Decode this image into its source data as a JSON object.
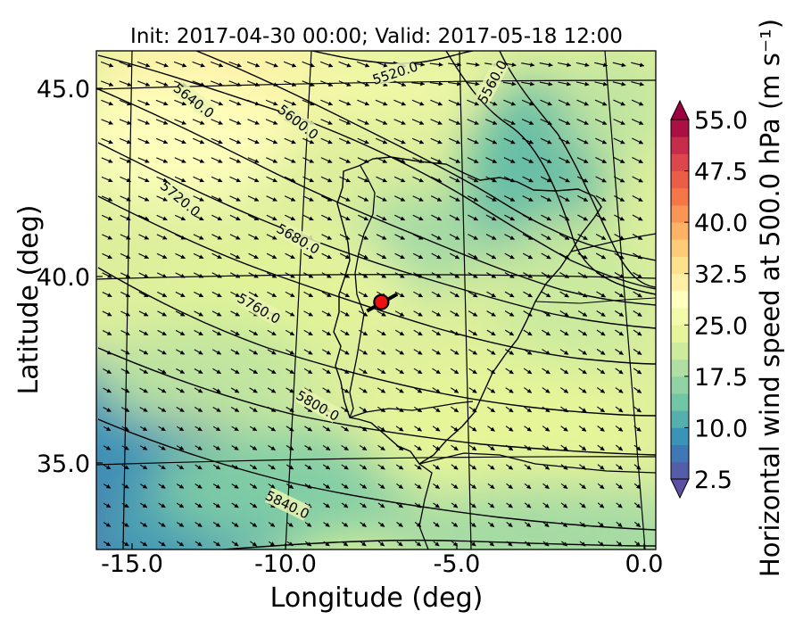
{
  "chart_data": {
    "type": "contourf-map",
    "title": "Init: 2017-04-30 00:00; Valid: 2017-05-18 12:00",
    "xlabel": "Longitude (deg)",
    "ylabel": "Latitude (deg)",
    "xlim": [
      -15.9,
      0.2
    ],
    "ylim": [
      32.7,
      46.0
    ],
    "x_ticks": [
      {
        "value": -15.0,
        "label": "-15.0"
      },
      {
        "value": -10.0,
        "label": "-10.0"
      },
      {
        "value": -5.0,
        "label": "-5.0"
      },
      {
        "value": 0.0,
        "label": "0.0"
      }
    ],
    "y_ticks": [
      {
        "value": 35.0,
        "label": "35.0"
      },
      {
        "value": 40.0,
        "label": "40.0"
      },
      {
        "value": 45.0,
        "label": "45.0"
      }
    ],
    "colorbar": {
      "label": "Horizontal wind speed at 500.0 hPa (m s⁻¹)",
      "min": 2.5,
      "max": 55.0,
      "step": 2.5,
      "ticks": [
        "2.5",
        "10.0",
        "17.5",
        "25.0",
        "32.5",
        "40.0",
        "47.5",
        "55.0"
      ],
      "tick_values": [
        2.5,
        10.0,
        17.5,
        25.0,
        32.5,
        40.0,
        47.5,
        55.0
      ],
      "colormap": "Spectral_r",
      "extend": "both"
    },
    "geopotential_contours": [
      {
        "label": "5520.0",
        "value": 5520.0
      },
      {
        "label": "5560.0",
        "value": 5560.0
      },
      {
        "label": "5600.0",
        "value": 5600.0
      },
      {
        "label": "5640.0",
        "value": 5640.0
      },
      {
        "label": "5680.0",
        "value": 5680.0
      },
      {
        "label": "5720.0",
        "value": 5720.0
      },
      {
        "label": "5760.0",
        "value": 5760.0
      },
      {
        "label": "5800.0",
        "value": 5800.0
      },
      {
        "label": "5840.0",
        "value": 5840.0
      }
    ],
    "marker": {
      "lon": -7.7,
      "lat": 39.3,
      "color": "#ee1111"
    },
    "wind_vectors": "quiver arrows (flow from northwest toward southeast)"
  }
}
